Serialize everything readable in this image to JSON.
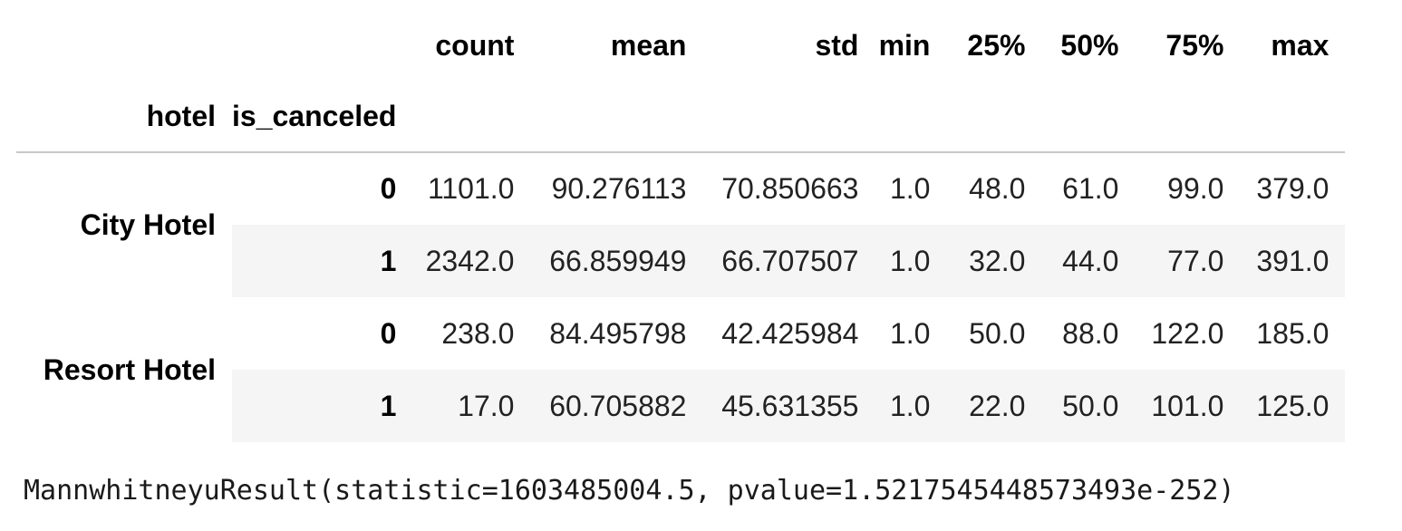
{
  "table": {
    "columns": [
      "count",
      "mean",
      "std",
      "min",
      "25%",
      "50%",
      "75%",
      "max"
    ],
    "index_names": [
      "hotel",
      "is_canceled"
    ],
    "rows": [
      {
        "hotel": "City Hotel",
        "is_canceled": "0",
        "values": [
          "1101.0",
          "90.276113",
          "70.850663",
          "1.0",
          "48.0",
          "61.0",
          "99.0",
          "379.0"
        ]
      },
      {
        "hotel": "",
        "is_canceled": "1",
        "values": [
          "2342.0",
          "66.859949",
          "66.707507",
          "1.0",
          "32.0",
          "44.0",
          "77.0",
          "391.0"
        ]
      },
      {
        "hotel": "Resort Hotel",
        "is_canceled": "0",
        "values": [
          "238.0",
          "84.495798",
          "42.425984",
          "1.0",
          "50.0",
          "88.0",
          "122.0",
          "185.0"
        ]
      },
      {
        "hotel": "",
        "is_canceled": "1",
        "values": [
          "17.0",
          "60.705882",
          "45.631355",
          "1.0",
          "22.0",
          "50.0",
          "101.0",
          "125.0"
        ]
      }
    ]
  },
  "output": {
    "result_text": "MannwhitneyuResult(statistic=1603485004.5, pvalue=1.5217545448573493e-252)"
  }
}
